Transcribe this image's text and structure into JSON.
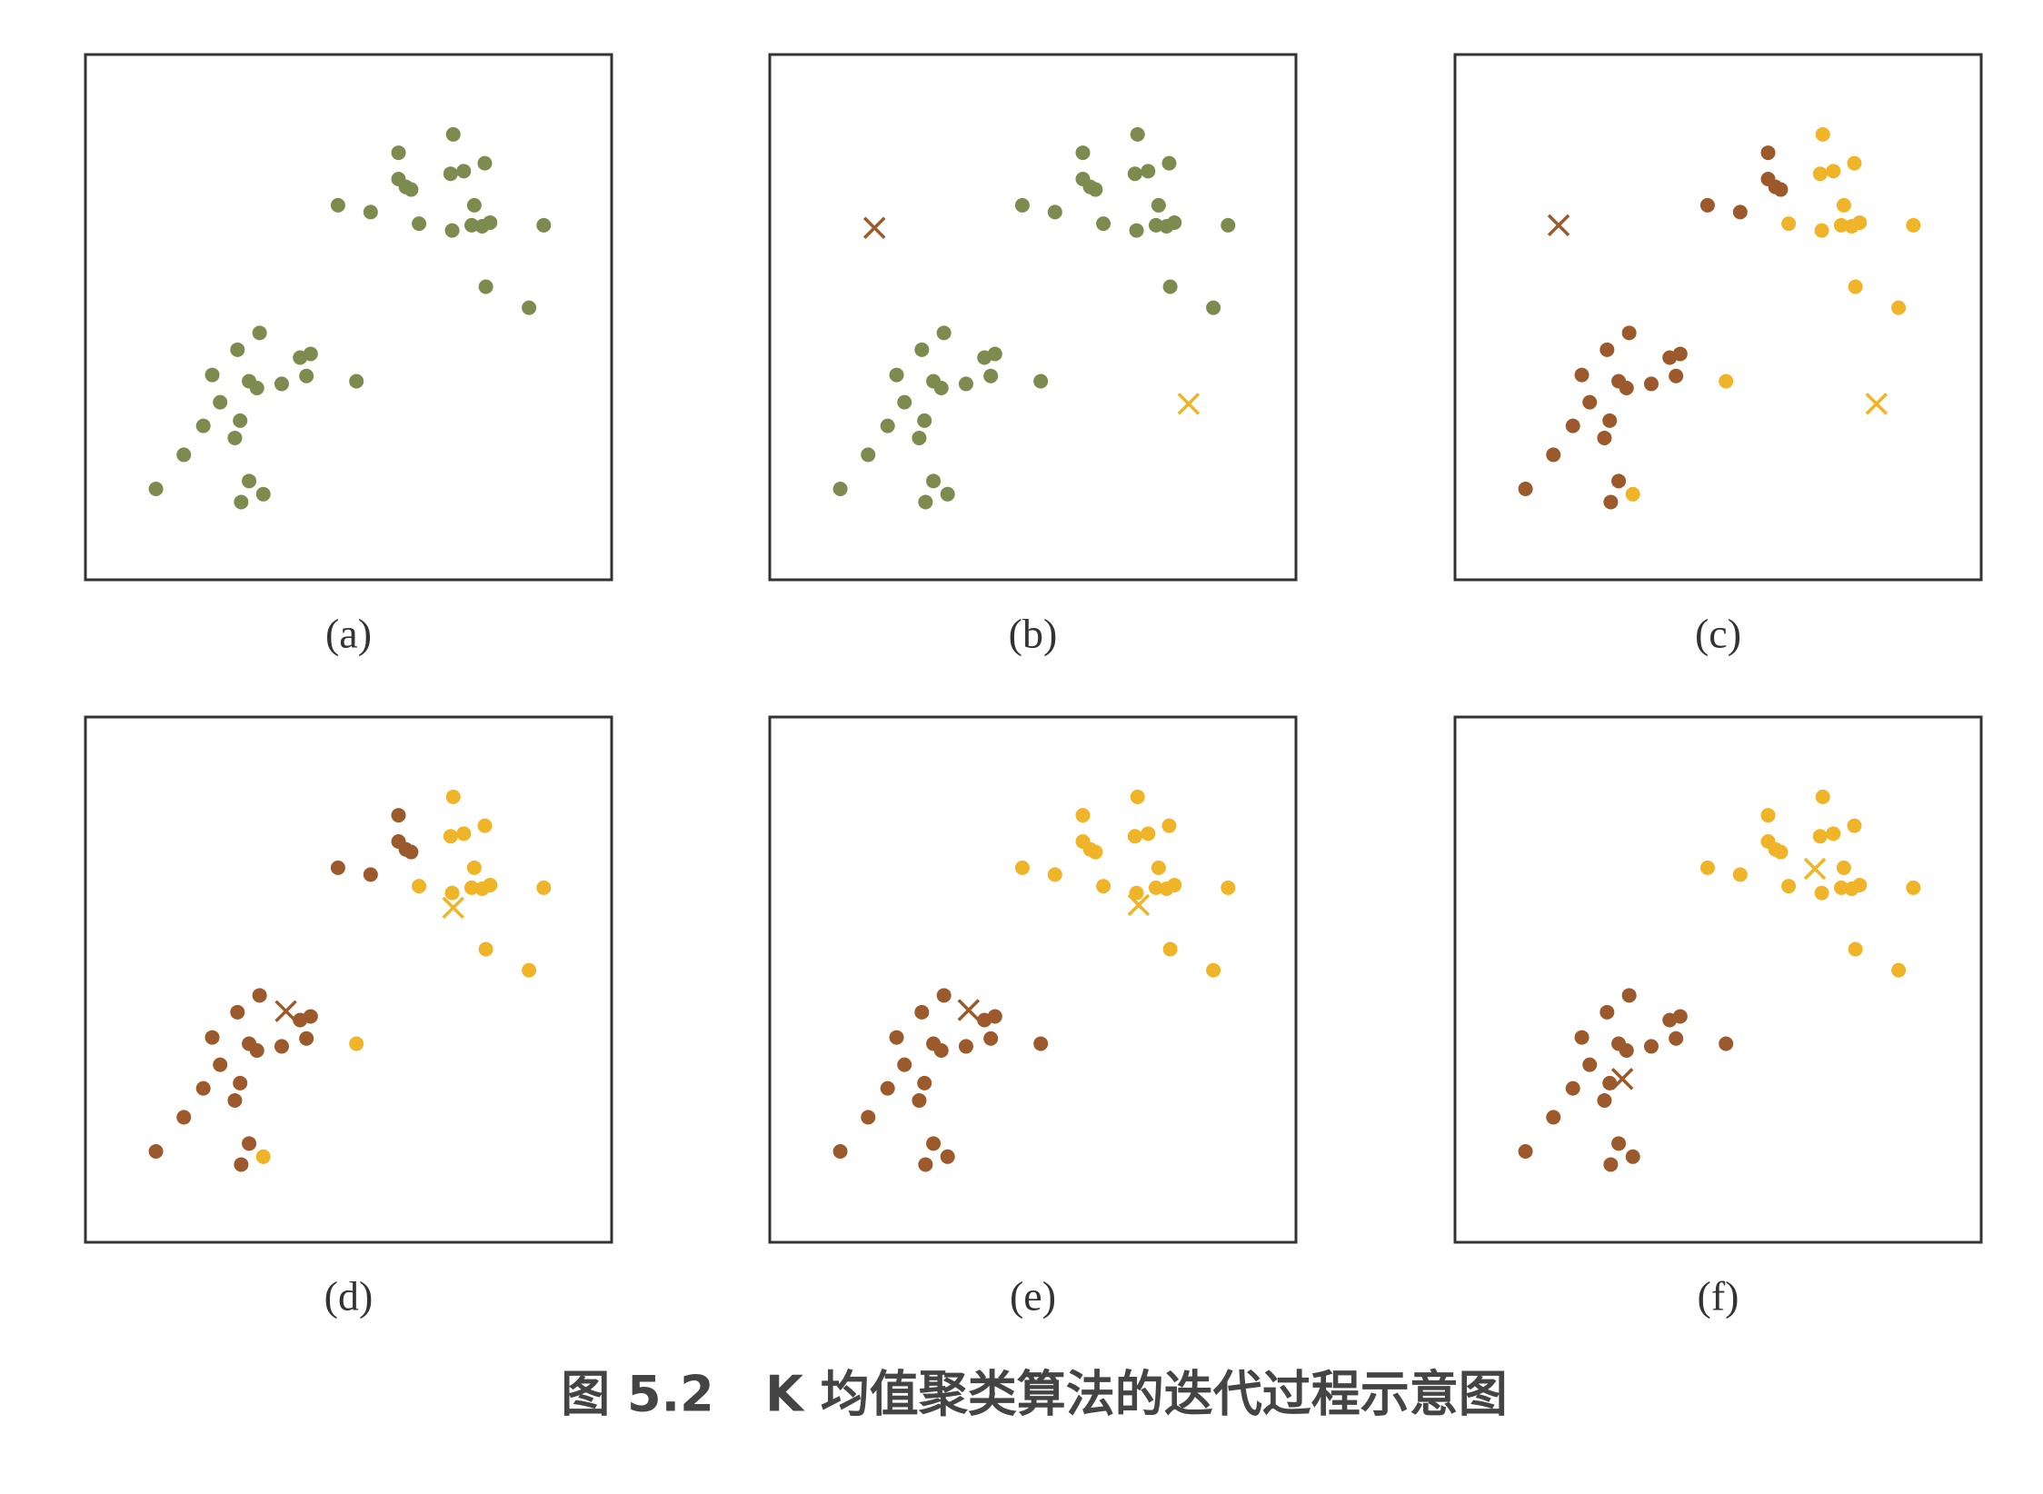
{
  "chart_data": [
    {
      "type": "scatter",
      "caption": "(a)",
      "xlim": [
        0,
        100
      ],
      "ylim": [
        0,
        100
      ],
      "x": [
        59.5,
        69.9,
        59.5,
        60.9,
        61.9,
        69.4,
        71.9,
        75.9,
        48.0,
        54.2,
        63.4,
        69.7,
        73.4,
        73.9,
        75.4,
        76.9,
        87.1,
        76.1,
        84.3,
        33.1,
        28.9,
        40.8,
        42.8,
        24.1,
        31.1,
        32.6,
        37.3,
        42.0,
        51.5,
        25.6,
        29.4,
        22.4,
        28.4,
        18.7,
        13.4,
        31.1,
        29.6,
        33.8
      ],
      "y": [
        81.3,
        84.8,
        76.3,
        74.8,
        74.3,
        77.3,
        77.8,
        79.3,
        71.3,
        70.0,
        67.8,
        66.5,
        67.5,
        71.3,
        67.3,
        68.0,
        67.5,
        55.8,
        51.8,
        47.0,
        43.8,
        42.3,
        43.0,
        39.0,
        37.8,
        36.5,
        37.3,
        38.8,
        37.8,
        33.8,
        30.3,
        29.3,
        27.0,
        23.8,
        17.3,
        18.8,
        14.8,
        16.3
      ],
      "colors": [
        "#7d8b4f",
        "#7d8b4f",
        "#7d8b4f",
        "#7d8b4f",
        "#7d8b4f",
        "#7d8b4f",
        "#7d8b4f",
        "#7d8b4f",
        "#7d8b4f",
        "#7d8b4f",
        "#7d8b4f",
        "#7d8b4f",
        "#7d8b4f",
        "#7d8b4f",
        "#7d8b4f",
        "#7d8b4f",
        "#7d8b4f",
        "#7d8b4f",
        "#7d8b4f",
        "#7d8b4f",
        "#7d8b4f",
        "#7d8b4f",
        "#7d8b4f",
        "#7d8b4f",
        "#7d8b4f",
        "#7d8b4f",
        "#7d8b4f",
        "#7d8b4f",
        "#7d8b4f",
        "#7d8b4f",
        "#7d8b4f",
        "#7d8b4f",
        "#7d8b4f",
        "#7d8b4f",
        "#7d8b4f",
        "#7d8b4f",
        "#7d8b4f",
        "#7d8b4f"
      ]
    },
    {
      "type": "scatter",
      "caption": "(b)",
      "xlim": [
        0,
        100
      ],
      "ylim": [
        0,
        100
      ],
      "x": [
        59.5,
        69.9,
        59.5,
        60.9,
        61.9,
        69.4,
        71.9,
        75.9,
        48.0,
        54.2,
        63.4,
        69.7,
        73.4,
        73.9,
        75.4,
        76.9,
        87.1,
        76.1,
        84.3,
        33.1,
        28.9,
        40.8,
        42.8,
        24.1,
        31.1,
        32.6,
        37.3,
        42.0,
        51.5,
        25.6,
        29.4,
        22.4,
        28.4,
        18.7,
        13.4,
        31.1,
        29.6,
        33.8
      ],
      "y": [
        81.3,
        84.8,
        76.3,
        74.8,
        74.3,
        77.3,
        77.8,
        79.3,
        71.3,
        70.0,
        67.8,
        66.5,
        67.5,
        71.3,
        67.3,
        68.0,
        67.5,
        55.8,
        51.8,
        47.0,
        43.8,
        42.3,
        43.0,
        39.0,
        37.8,
        36.5,
        37.3,
        38.8,
        37.8,
        33.8,
        30.3,
        29.3,
        27.0,
        23.8,
        17.3,
        18.8,
        14.8,
        16.3
      ],
      "colors": [
        "#7d8b4f",
        "#7d8b4f",
        "#7d8b4f",
        "#7d8b4f",
        "#7d8b4f",
        "#7d8b4f",
        "#7d8b4f",
        "#7d8b4f",
        "#7d8b4f",
        "#7d8b4f",
        "#7d8b4f",
        "#7d8b4f",
        "#7d8b4f",
        "#7d8b4f",
        "#7d8b4f",
        "#7d8b4f",
        "#7d8b4f",
        "#7d8b4f",
        "#7d8b4f",
        "#7d8b4f",
        "#7d8b4f",
        "#7d8b4f",
        "#7d8b4f",
        "#7d8b4f",
        "#7d8b4f",
        "#7d8b4f",
        "#7d8b4f",
        "#7d8b4f",
        "#7d8b4f",
        "#7d8b4f",
        "#7d8b4f",
        "#7d8b4f",
        "#7d8b4f",
        "#7d8b4f",
        "#7d8b4f",
        "#7d8b4f",
        "#7d8b4f",
        "#7d8b4f"
      ],
      "centroids": {
        "x": [
          19.9,
          79.6
        ],
        "y": [
          67.0,
          33.5
        ],
        "colors": [
          "#9c5a2c",
          "#f0b429"
        ]
      }
    },
    {
      "type": "scatter",
      "caption": "(c)",
      "xlim": [
        0,
        100
      ],
      "ylim": [
        0,
        100
      ],
      "x": [
        59.5,
        69.9,
        59.5,
        60.9,
        61.9,
        69.4,
        71.9,
        75.9,
        48.0,
        54.2,
        63.4,
        69.7,
        73.4,
        73.9,
        75.4,
        76.9,
        87.1,
        76.1,
        84.3,
        33.1,
        28.9,
        40.8,
        42.8,
        24.1,
        31.1,
        32.6,
        37.3,
        42.0,
        51.5,
        25.6,
        29.4,
        22.4,
        28.4,
        18.7,
        13.4,
        31.1,
        29.6,
        33.8
      ],
      "y": [
        81.3,
        84.8,
        76.3,
        74.8,
        74.3,
        77.3,
        77.8,
        79.3,
        71.3,
        70.0,
        67.8,
        66.5,
        67.5,
        71.3,
        67.3,
        68.0,
        67.5,
        55.8,
        51.8,
        47.0,
        43.8,
        42.3,
        43.0,
        39.0,
        37.8,
        36.5,
        37.3,
        38.8,
        37.8,
        33.8,
        30.3,
        29.3,
        27.0,
        23.8,
        17.3,
        18.8,
        14.8,
        16.3
      ],
      "colors": [
        "#9c5a2c",
        "#f0b429",
        "#9c5a2c",
        "#9c5a2c",
        "#9c5a2c",
        "#f0b429",
        "#f0b429",
        "#f0b429",
        "#9c5a2c",
        "#9c5a2c",
        "#f0b429",
        "#f0b429",
        "#f0b429",
        "#f0b429",
        "#f0b429",
        "#f0b429",
        "#f0b429",
        "#f0b429",
        "#f0b429",
        "#9c5a2c",
        "#9c5a2c",
        "#9c5a2c",
        "#9c5a2c",
        "#9c5a2c",
        "#9c5a2c",
        "#9c5a2c",
        "#9c5a2c",
        "#9c5a2c",
        "#f0b429",
        "#9c5a2c",
        "#9c5a2c",
        "#9c5a2c",
        "#9c5a2c",
        "#9c5a2c",
        "#9c5a2c",
        "#9c5a2c",
        "#9c5a2c",
        "#f0b429"
      ],
      "centroids": {
        "x": [
          19.7,
          80.1
        ],
        "y": [
          67.5,
          33.5
        ],
        "colors": [
          "#9c5a2c",
          "#f0b429"
        ]
      }
    },
    {
      "type": "scatter",
      "caption": "(d)",
      "xlim": [
        0,
        100
      ],
      "ylim": [
        0,
        100
      ],
      "x": [
        59.5,
        69.9,
        59.5,
        60.9,
        61.9,
        69.4,
        71.9,
        75.9,
        48.0,
        54.2,
        63.4,
        69.7,
        73.4,
        73.9,
        75.4,
        76.9,
        87.1,
        76.1,
        84.3,
        33.1,
        28.9,
        40.8,
        42.8,
        24.1,
        31.1,
        32.6,
        37.3,
        42.0,
        51.5,
        25.6,
        29.4,
        22.4,
        28.4,
        18.7,
        13.4,
        31.1,
        29.6,
        33.8
      ],
      "y": [
        81.3,
        84.8,
        76.3,
        74.8,
        74.3,
        77.3,
        77.8,
        79.3,
        71.3,
        70.0,
        67.8,
        66.5,
        67.5,
        71.3,
        67.3,
        68.0,
        67.5,
        55.8,
        51.8,
        47.0,
        43.8,
        42.3,
        43.0,
        39.0,
        37.8,
        36.5,
        37.3,
        38.8,
        37.8,
        33.8,
        30.3,
        29.3,
        27.0,
        23.8,
        17.3,
        18.8,
        14.8,
        16.3
      ],
      "colors": [
        "#9c5a2c",
        "#f0b429",
        "#9c5a2c",
        "#9c5a2c",
        "#9c5a2c",
        "#f0b429",
        "#f0b429",
        "#f0b429",
        "#9c5a2c",
        "#9c5a2c",
        "#f0b429",
        "#f0b429",
        "#f0b429",
        "#f0b429",
        "#f0b429",
        "#f0b429",
        "#f0b429",
        "#f0b429",
        "#f0b429",
        "#9c5a2c",
        "#9c5a2c",
        "#9c5a2c",
        "#9c5a2c",
        "#9c5a2c",
        "#9c5a2c",
        "#9c5a2c",
        "#9c5a2c",
        "#9c5a2c",
        "#f0b429",
        "#9c5a2c",
        "#9c5a2c",
        "#9c5a2c",
        "#9c5a2c",
        "#9c5a2c",
        "#9c5a2c",
        "#9c5a2c",
        "#9c5a2c",
        "#f0b429"
      ],
      "centroids": {
        "x": [
          38.1,
          69.9
        ],
        "y": [
          44.0,
          63.7
        ],
        "colors": [
          "#9c5a2c",
          "#f0b429"
        ]
      }
    },
    {
      "type": "scatter",
      "caption": "(e)",
      "xlim": [
        0,
        100
      ],
      "ylim": [
        0,
        100
      ],
      "x": [
        59.5,
        69.9,
        59.5,
        60.9,
        61.9,
        69.4,
        71.9,
        75.9,
        48.0,
        54.2,
        63.4,
        69.7,
        73.4,
        73.9,
        75.4,
        76.9,
        87.1,
        76.1,
        84.3,
        33.1,
        28.9,
        40.8,
        42.8,
        24.1,
        31.1,
        32.6,
        37.3,
        42.0,
        51.5,
        25.6,
        29.4,
        22.4,
        28.4,
        18.7,
        13.4,
        31.1,
        29.6,
        33.8
      ],
      "y": [
        81.3,
        84.8,
        76.3,
        74.8,
        74.3,
        77.3,
        77.8,
        79.3,
        71.3,
        70.0,
        67.8,
        66.5,
        67.5,
        71.3,
        67.3,
        68.0,
        67.5,
        55.8,
        51.8,
        47.0,
        43.8,
        42.3,
        43.0,
        39.0,
        37.8,
        36.5,
        37.3,
        38.8,
        37.8,
        33.8,
        30.3,
        29.3,
        27.0,
        23.8,
        17.3,
        18.8,
        14.8,
        16.3
      ],
      "colors": [
        "#f0b429",
        "#f0b429",
        "#f0b429",
        "#f0b429",
        "#f0b429",
        "#f0b429",
        "#f0b429",
        "#f0b429",
        "#f0b429",
        "#f0b429",
        "#f0b429",
        "#f0b429",
        "#f0b429",
        "#f0b429",
        "#f0b429",
        "#f0b429",
        "#f0b429",
        "#f0b429",
        "#f0b429",
        "#9c5a2c",
        "#9c5a2c",
        "#9c5a2c",
        "#9c5a2c",
        "#9c5a2c",
        "#9c5a2c",
        "#9c5a2c",
        "#9c5a2c",
        "#9c5a2c",
        "#9c5a2c",
        "#9c5a2c",
        "#9c5a2c",
        "#9c5a2c",
        "#9c5a2c",
        "#9c5a2c",
        "#9c5a2c",
        "#9c5a2c",
        "#9c5a2c",
        "#9c5a2c"
      ],
      "centroids": {
        "x": [
          37.8,
          70.1
        ],
        "y": [
          44.2,
          64.2
        ],
        "colors": [
          "#9c5a2c",
          "#f0b429"
        ]
      }
    },
    {
      "type": "scatter",
      "caption": "(f)",
      "xlim": [
        0,
        100
      ],
      "ylim": [
        0,
        100
      ],
      "x": [
        59.5,
        69.9,
        59.5,
        60.9,
        61.9,
        69.4,
        71.9,
        75.9,
        48.0,
        54.2,
        63.4,
        69.7,
        73.4,
        73.9,
        75.4,
        76.9,
        87.1,
        76.1,
        84.3,
        33.1,
        28.9,
        40.8,
        42.8,
        24.1,
        31.1,
        32.6,
        37.3,
        42.0,
        51.5,
        25.6,
        29.4,
        22.4,
        28.4,
        18.7,
        13.4,
        31.1,
        29.6,
        33.8
      ],
      "y": [
        81.3,
        84.8,
        76.3,
        74.8,
        74.3,
        77.3,
        77.8,
        79.3,
        71.3,
        70.0,
        67.8,
        66.5,
        67.5,
        71.3,
        67.3,
        68.0,
        67.5,
        55.8,
        51.8,
        47.0,
        43.8,
        42.3,
        43.0,
        39.0,
        37.8,
        36.5,
        37.3,
        38.8,
        37.8,
        33.8,
        30.3,
        29.3,
        27.0,
        23.8,
        17.3,
        18.8,
        14.8,
        16.3
      ],
      "colors": [
        "#f0b429",
        "#f0b429",
        "#f0b429",
        "#f0b429",
        "#f0b429",
        "#f0b429",
        "#f0b429",
        "#f0b429",
        "#f0b429",
        "#f0b429",
        "#f0b429",
        "#f0b429",
        "#f0b429",
        "#f0b429",
        "#f0b429",
        "#f0b429",
        "#f0b429",
        "#f0b429",
        "#f0b429",
        "#9c5a2c",
        "#9c5a2c",
        "#9c5a2c",
        "#9c5a2c",
        "#9c5a2c",
        "#9c5a2c",
        "#9c5a2c",
        "#9c5a2c",
        "#9c5a2c",
        "#9c5a2c",
        "#9c5a2c",
        "#9c5a2c",
        "#9c5a2c",
        "#9c5a2c",
        "#9c5a2c",
        "#9c5a2c",
        "#9c5a2c",
        "#9c5a2c",
        "#9c5a2c"
      ],
      "centroids": {
        "x": [
          31.8,
          68.4
        ],
        "y": [
          31.1,
          71.1
        ],
        "colors": [
          "#9c5a2c",
          "#f0b429"
        ]
      }
    }
  ],
  "caption": "图 5.2   K 均值聚类算法的迭代过程示意图"
}
